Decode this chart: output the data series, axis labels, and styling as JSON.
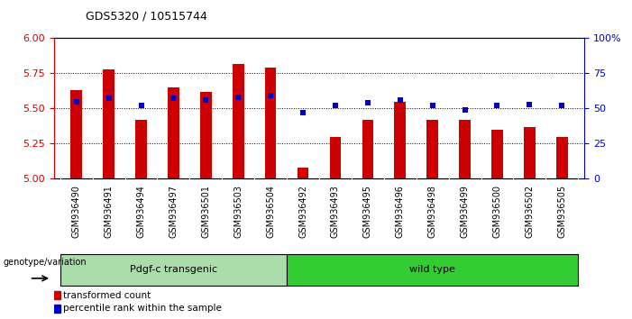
{
  "title": "GDS5320 / 10515744",
  "categories": [
    "GSM936490",
    "GSM936491",
    "GSM936494",
    "GSM936497",
    "GSM936501",
    "GSM936503",
    "GSM936504",
    "GSM936492",
    "GSM936493",
    "GSM936495",
    "GSM936496",
    "GSM936498",
    "GSM936499",
    "GSM936500",
    "GSM936502",
    "GSM936505"
  ],
  "bar_values": [
    5.63,
    5.78,
    5.42,
    5.65,
    5.62,
    5.82,
    5.79,
    5.08,
    5.3,
    5.42,
    5.55,
    5.42,
    5.42,
    5.35,
    5.37,
    5.3
  ],
  "percentile_values": [
    55,
    57,
    52,
    57,
    56,
    58,
    59,
    47,
    52,
    54,
    56,
    52,
    49,
    52,
    53,
    52
  ],
  "bar_color": "#cc0000",
  "percentile_color": "#0000cc",
  "ylim_left": [
    5.0,
    6.0
  ],
  "ylim_right": [
    0,
    100
  ],
  "yticks_left": [
    5.0,
    5.25,
    5.5,
    5.75,
    6.0
  ],
  "yticks_right": [
    0,
    25,
    50,
    75,
    100
  ],
  "group1_label": "Pdgf-c transgenic",
  "group2_label": "wild type",
  "group1_count": 7,
  "group2_count": 9,
  "group1_color": "#aaddaa",
  "group2_color": "#33cc33",
  "genotype_label": "genotype/variation",
  "legend_bar": "transformed count",
  "legend_pct": "percentile rank within the sample",
  "bar_width": 0.35,
  "grid_lines": [
    5.25,
    5.5,
    5.75
  ],
  "xtick_bg_color": "#c8c8c8",
  "fig_width": 7.01,
  "fig_height": 3.54
}
